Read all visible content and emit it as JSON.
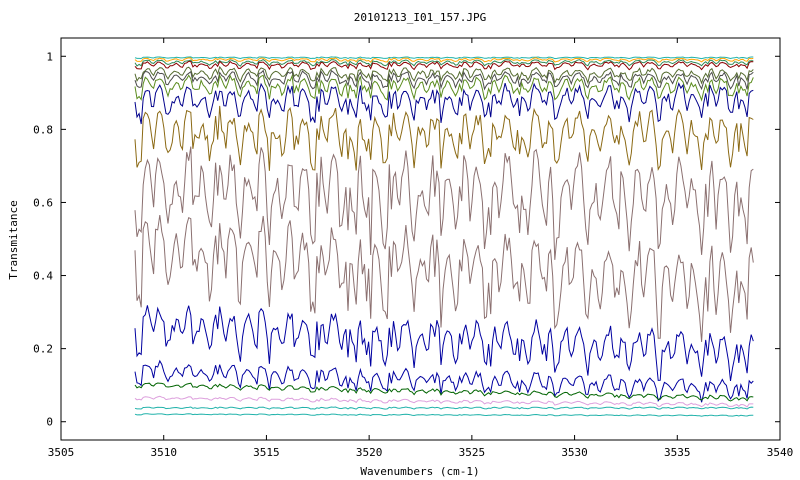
{
  "chart_data": {
    "type": "line",
    "title": "20101213_I01_157.JPG",
    "xlabel": "Wavenumbers (cm-1)",
    "ylabel": "Transmitance",
    "xlim": [
      3505,
      3540
    ],
    "ylim": [
      -0.05,
      1.05
    ],
    "xticks": [
      3505,
      3510,
      3515,
      3520,
      3525,
      3530,
      3535,
      3540
    ],
    "xtick_labels": [
      "3505",
      "3510",
      "3515",
      "3520",
      "3525",
      "3530",
      "3535",
      "3540"
    ],
    "yticks": [
      0,
      0.2,
      0.4,
      0.6,
      0.8,
      1
    ],
    "ytick_labels": [
      "0",
      "0.2",
      "0.4",
      "0.6",
      "0.8",
      "1"
    ],
    "grid": false,
    "legend": false,
    "x_start": 3508.6,
    "x_end": 3538.7,
    "num_points": 300,
    "series": [
      {
        "color": "#20b2aa",
        "baseline": 0.998,
        "depth": 0.004,
        "end_level": 0.998
      },
      {
        "color": "#ffa500",
        "baseline": 0.995,
        "depth": 0.01,
        "end_level": 0.995
      },
      {
        "color": "#2e8b57",
        "baseline": 0.99,
        "depth": 0.015,
        "end_level": 0.99
      },
      {
        "color": "#8b0000",
        "baseline": 0.985,
        "depth": 0.02,
        "end_level": 0.985
      },
      {
        "color": "#556b2f",
        "baseline": 0.97,
        "depth": 0.035,
        "end_level": 0.965
      },
      {
        "color": "#4b4b4b",
        "baseline": 0.96,
        "depth": 0.045,
        "end_level": 0.955
      },
      {
        "color": "#5b8c1e",
        "baseline": 0.945,
        "depth": 0.06,
        "end_level": 0.94
      },
      {
        "color": "#00008b",
        "baseline": 0.915,
        "depth": 0.09,
        "end_level": 0.92
      },
      {
        "color": "#8b6914",
        "baseline": 0.855,
        "depth": 0.15,
        "end_level": 0.845
      },
      {
        "color": "#8b7070",
        "baseline": 0.745,
        "depth": 0.25,
        "end_level": 0.71
      },
      {
        "color": "#8b7070",
        "baseline": 0.57,
        "depth": 0.24,
        "end_level": 0.47
      },
      {
        "color": "#0000a0",
        "baseline": 0.32,
        "depth": 0.13,
        "end_level": 0.24
      },
      {
        "color": "#0000a0",
        "baseline": 0.165,
        "depth": 0.06,
        "end_level": 0.115
      },
      {
        "color": "#006400",
        "baseline": 0.108,
        "depth": 0.015,
        "end_level": 0.07
      },
      {
        "color": "#dda0dd",
        "baseline": 0.07,
        "depth": 0.01,
        "end_level": 0.05
      },
      {
        "color": "#20b2aa",
        "baseline": 0.04,
        "depth": 0.005,
        "end_level": 0.04
      },
      {
        "color": "#20b2aa",
        "baseline": 0.022,
        "depth": 0.003,
        "end_level": 0.018
      }
    ]
  }
}
